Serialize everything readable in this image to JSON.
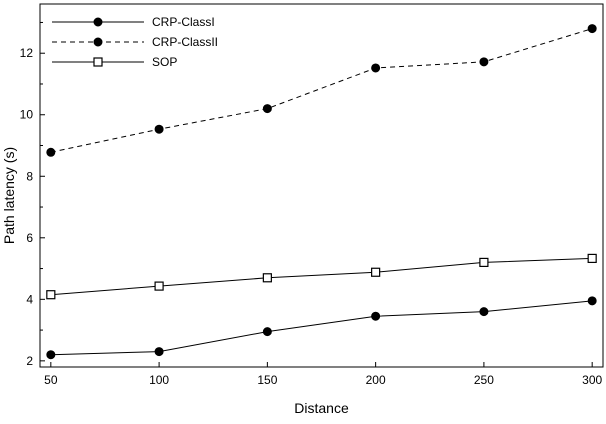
{
  "chart_data": {
    "type": "line",
    "title": "",
    "xlabel": "Distance",
    "ylabel": "Path latency (s)",
    "x": [
      50,
      100,
      150,
      200,
      250,
      300
    ],
    "xlim": [
      45,
      305
    ],
    "ylim": [
      1.8,
      13.6
    ],
    "xticks": [
      50,
      100,
      150,
      200,
      250,
      300
    ],
    "yticks": [
      2,
      4,
      6,
      8,
      10,
      12
    ],
    "grid": false,
    "legend_position": "top-left",
    "series": [
      {
        "name": "CRP-ClassI",
        "values": [
          2.2,
          2.3,
          2.95,
          3.45,
          3.6,
          3.95
        ],
        "line_style": "solid",
        "marker": "filled-circle",
        "color": "#000000"
      },
      {
        "name": "CRP-ClassII",
        "values": [
          8.78,
          9.53,
          10.2,
          11.52,
          11.72,
          12.8
        ],
        "line_style": "dashed",
        "marker": "filled-circle",
        "color": "#000000"
      },
      {
        "name": "SOP",
        "values": [
          4.15,
          4.43,
          4.7,
          4.88,
          5.2,
          5.33
        ],
        "line_style": "solid",
        "marker": "open-square",
        "color": "#000000"
      }
    ]
  }
}
